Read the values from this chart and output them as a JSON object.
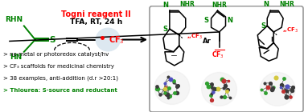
{
  "colors": {
    "green": "#008000",
    "red": "#ff0000",
    "black": "#000000",
    "cf3_circle": "#dde8f0",
    "border_gray": "#999999",
    "bullet_green": "#00aa00"
  },
  "reagent_title": "Togni reagent II",
  "reagent_conditions": "TFA, RT, 24 h",
  "bullet_points": [
    "> no metal or photoredox catalyst/hv",
    "> CF₃ scaffolds for medicinal chemistry",
    "> 38 examples, anti-addition (d.r >20:1)",
    "> Thiourea: S-source and reductant"
  ],
  "bullet_colors": [
    "black",
    "black",
    "black",
    "green"
  ],
  "figsize": [
    3.78,
    1.4
  ],
  "dpi": 100
}
